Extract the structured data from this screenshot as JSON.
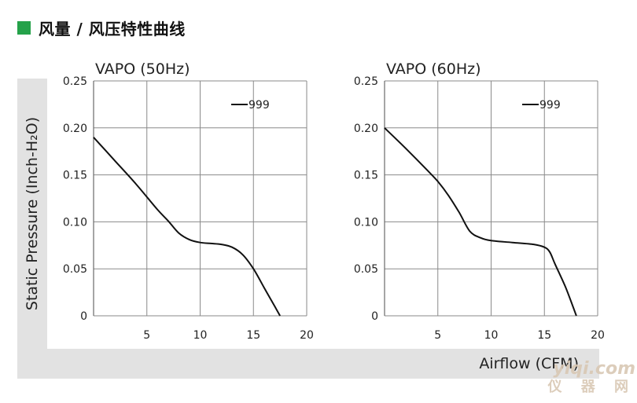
{
  "header": {
    "title": "风量 / 风压特性曲线",
    "accent_color": "#25a24a"
  },
  "axis_labels": {
    "y": "Static Pressure (Inch-H₂O)",
    "x": "Airflow (CFM)"
  },
  "watermark": {
    "line1": "yiqi.com",
    "line2": "仪 器 网"
  },
  "chart_data": [
    {
      "type": "line",
      "title": "VAPO (50Hz)",
      "xlabel": "Airflow (CFM)",
      "ylabel": "Static Pressure (Inch-H₂O)",
      "xlim": [
        0,
        20
      ],
      "ylim": [
        0,
        0.25
      ],
      "xticks": [
        "5",
        "10",
        "15",
        "20"
      ],
      "yticks": [
        "0.25",
        "0.20",
        "0.15",
        "0.10",
        "0.05",
        "0"
      ],
      "grid": true,
      "legend_position": "top-right",
      "series": [
        {
          "name": "999",
          "x": [
            0,
            2,
            4,
            6,
            7,
            8,
            9,
            10,
            11,
            12,
            13,
            14,
            15,
            16,
            17,
            17.5
          ],
          "y": [
            0.19,
            0.165,
            0.14,
            0.113,
            0.101,
            0.088,
            0.081,
            0.078,
            0.077,
            0.076,
            0.073,
            0.065,
            0.05,
            0.03,
            0.01,
            0
          ]
        }
      ]
    },
    {
      "type": "line",
      "title": "VAPO (60Hz)",
      "xlabel": "Airflow (CFM)",
      "ylabel": "Static Pressure (Inch-H₂O)",
      "xlim": [
        0,
        20
      ],
      "ylim": [
        0,
        0.25
      ],
      "xticks": [
        "5",
        "10",
        "15",
        "20"
      ],
      "yticks": [
        "0.25",
        "0.20",
        "0.15",
        "0.10",
        "0.05",
        "0"
      ],
      "grid": true,
      "legend_position": "top-right",
      "series": [
        {
          "name": "999",
          "x": [
            0,
            2,
            4,
            5,
            6,
            7,
            8,
            9,
            10,
            12,
            14,
            15,
            15.5,
            16,
            17,
            18
          ],
          "y": [
            0.2,
            0.178,
            0.155,
            0.143,
            0.128,
            0.11,
            0.09,
            0.083,
            0.08,
            0.078,
            0.076,
            0.073,
            0.068,
            0.055,
            0.03,
            0
          ]
        }
      ]
    }
  ]
}
